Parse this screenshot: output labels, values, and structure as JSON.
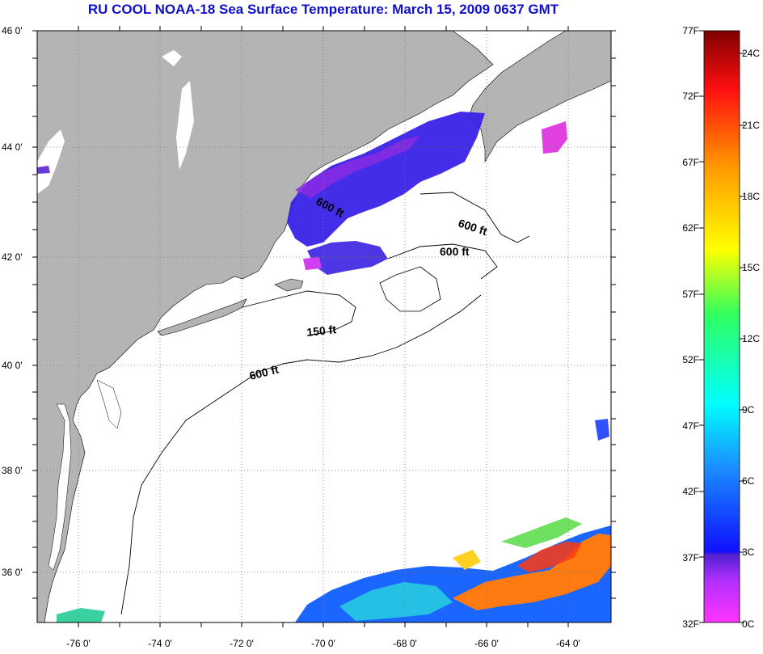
{
  "title": "RU COOL  NOAA-18  Sea Surface Temperature:  March 15, 2009 0637 GMT",
  "map": {
    "lat_labels": [
      "46 0'",
      "44 0'",
      "42 0'",
      "40 0'",
      "38 0'",
      "36 0'"
    ],
    "lon_labels": [
      "-76 0'",
      "-74 0'",
      "-72 0'",
      "-70 0'",
      "-68 0'",
      "-66 0'",
      "-64 0'"
    ],
    "lat_range": [
      35,
      46
    ],
    "lon_range": [
      -77,
      -63
    ],
    "contour_labels": [
      "600 ft",
      "600 ft",
      "600 ft",
      "150 ft",
      "600 ft"
    ],
    "colors": {
      "land": "#b4b4b4",
      "ocean": "#ffffff",
      "grid": "#555555"
    }
  },
  "colorbar": {
    "f_labels": [
      "77F",
      "72F",
      "67F",
      "62F",
      "57F",
      "52F",
      "47F",
      "42F",
      "37F",
      "32F"
    ],
    "c_labels": [
      "24C",
      "21C",
      "18C",
      "15C",
      "12C",
      "9C",
      "6C",
      "3C",
      "0C"
    ],
    "f_range": [
      32,
      77
    ],
    "c_range": [
      0,
      25
    ]
  }
}
